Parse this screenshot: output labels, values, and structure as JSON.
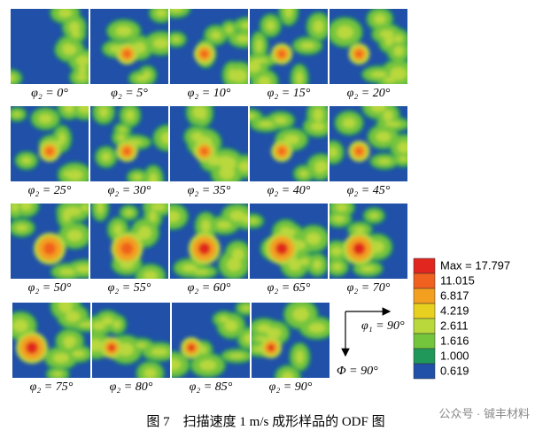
{
  "panels": [
    {
      "label": "φ₂ = 0°"
    },
    {
      "label": "φ₂ = 5°"
    },
    {
      "label": "φ₂ = 10°"
    },
    {
      "label": "φ₂ = 15°"
    },
    {
      "label": "φ₂ = 20°"
    },
    {
      "label": "φ₂ = 25°"
    },
    {
      "label": "φ₂ = 30°"
    },
    {
      "label": "φ₂ = 35°"
    },
    {
      "label": "φ₂ = 40°"
    },
    {
      "label": "φ₂ = 45°"
    },
    {
      "label": "φ₂ = 50°"
    },
    {
      "label": "φ₂ = 55°"
    },
    {
      "label": "φ₂ = 60°"
    },
    {
      "label": "φ₂ = 65°"
    },
    {
      "label": "φ₂ = 70°"
    },
    {
      "label": "φ₂ = 75°"
    },
    {
      "label": "φ₂ = 80°"
    },
    {
      "label": "φ₂ = 85°"
    },
    {
      "label": "φ₂ = 90°"
    }
  ],
  "legend": {
    "levels": [
      {
        "label": "Max = 17.797",
        "color": "#e0261e"
      },
      {
        "label": "11.015",
        "color": "#f0601e"
      },
      {
        "label": "6.817",
        "color": "#f3a020"
      },
      {
        "label": "4.219",
        "color": "#e8d020"
      },
      {
        "label": "2.611",
        "color": "#b8d83c"
      },
      {
        "label": "1.616",
        "color": "#74c43c"
      },
      {
        "label": "1.000",
        "color": "#20985a"
      },
      {
        "label": "0.619",
        "color": "#2050a8"
      }
    ]
  },
  "axes": {
    "x_label": "φ₁ = 90°",
    "y_label": "Φ = 90°"
  },
  "caption": "图 7　扫描速度 1 m/s 成形样品的 ODF 图",
  "watermark": "公众号 · 铖丰材料"
}
